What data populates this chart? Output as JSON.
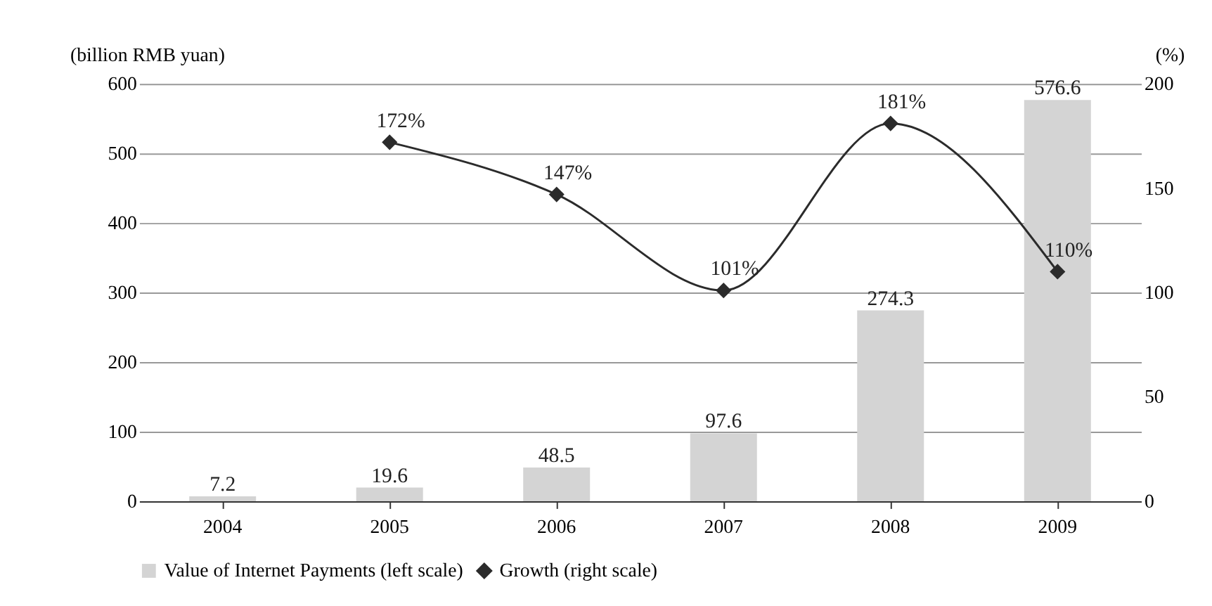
{
  "chart_data": {
    "type": "bar",
    "categories": [
      "2004",
      "2005",
      "2006",
      "2007",
      "2008",
      "2009"
    ],
    "ylabel": "(billion RMB yuan)",
    "y2label": "(%)",
    "ylim": [
      0,
      600
    ],
    "yticks": [
      0,
      100,
      200,
      300,
      400,
      500,
      600
    ],
    "y2lim": [
      0,
      200
    ],
    "y2ticks": [
      0,
      50,
      100,
      150,
      200
    ],
    "grid": "y",
    "legend": "bottom",
    "series": [
      {
        "name": "Value of Internet Payments (left scale)",
        "color": "#d4d4d4",
        "values": [
          7.2,
          19.6,
          48.5,
          97.6,
          274.3,
          576.6
        ],
        "value_labels": [
          "7.2",
          "19.6",
          "48.5",
          "97.6",
          "274.3",
          "576.6"
        ]
      },
      {
        "name": "Growth (right scale)",
        "type": "line",
        "axis": "y2",
        "marker": "diamond",
        "line_style": "solid",
        "color": "#2b2b2b",
        "values": [
          null,
          172,
          147,
          101,
          181,
          110
        ],
        "value_labels": [
          null,
          "172%",
          "147%",
          "101%",
          "181%",
          "110%"
        ]
      }
    ]
  }
}
